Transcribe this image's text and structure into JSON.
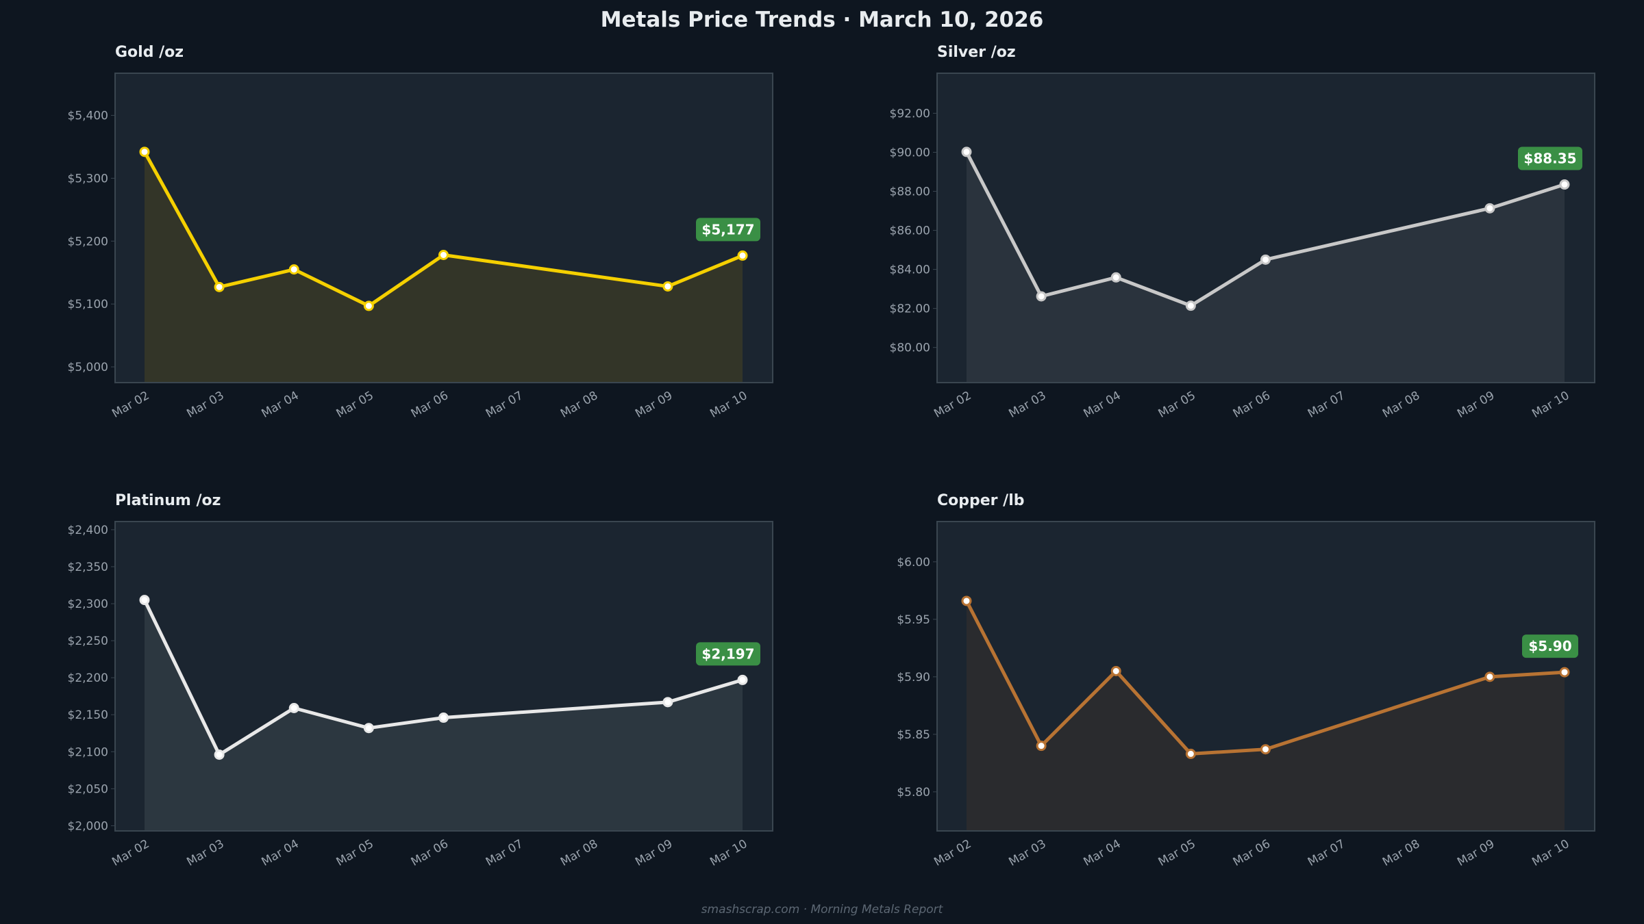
{
  "title": "Metals Price Trends  ·  March 10, 2026",
  "footer": "smashscrap.com  ·  Morning Metals Report",
  "colors": {
    "background": "#0e1620",
    "axes_bg": "#1b2530",
    "border": "#3a4650",
    "badge": "#3a8f45"
  },
  "chart_data": [
    {
      "type": "area",
      "title": "Gold  /oz",
      "categories": [
        "Mar 02",
        "Mar 03",
        "Mar 04",
        "Mar 05",
        "Mar 06",
        "Mar 07",
        "Mar 08",
        "Mar 09",
        "Mar 10"
      ],
      "values": [
        5342,
        5127,
        5155,
        5097,
        5178,
        null,
        null,
        5128,
        5177
      ],
      "ylim": [
        4975,
        5467
      ],
      "yticks": [
        5000,
        5100,
        5200,
        5300,
        5400
      ],
      "ytick_labels": [
        "$5,000",
        "$5,100",
        "$5,200",
        "$5,300",
        "$5,400"
      ],
      "badge": "$5,177",
      "line_color": "#f5d000",
      "fill_color": "#333528",
      "marker_fill": "#ffffff",
      "grid": false
    },
    {
      "type": "area",
      "title": "Silver  /oz",
      "categories": [
        "Mar 02",
        "Mar 03",
        "Mar 04",
        "Mar 05",
        "Mar 06",
        "Mar 07",
        "Mar 08",
        "Mar 09",
        "Mar 10"
      ],
      "values": [
        90.02,
        82.62,
        83.59,
        82.14,
        84.5,
        null,
        null,
        87.13,
        88.35
      ],
      "ylim": [
        78.2,
        94.05
      ],
      "yticks": [
        80,
        82,
        84,
        86,
        88,
        90,
        92
      ],
      "ytick_labels": [
        "$80.00",
        "$82.00",
        "$84.00",
        "$86.00",
        "$88.00",
        "$90.00",
        "$92.00"
      ],
      "badge": "$88.35",
      "line_color": "#c8c8c8",
      "fill_color": "#2a333d",
      "marker_fill": "#ffffff",
      "grid": false
    },
    {
      "type": "area",
      "title": "Platinum  /oz",
      "categories": [
        "Mar 02",
        "Mar 03",
        "Mar 04",
        "Mar 05",
        "Mar 06",
        "Mar 07",
        "Mar 08",
        "Mar 09",
        "Mar 10"
      ],
      "values": [
        2305,
        2096,
        2159,
        2132,
        2146,
        null,
        null,
        2167,
        2197
      ],
      "ylim": [
        1993,
        2411
      ],
      "yticks": [
        2000,
        2050,
        2100,
        2150,
        2200,
        2250,
        2300,
        2350,
        2400
      ],
      "ytick_labels": [
        "$2,000",
        "$2,050",
        "$2,100",
        "$2,150",
        "$2,200",
        "$2,250",
        "$2,300",
        "$2,350",
        "$2,400"
      ],
      "badge": "$2,197",
      "line_color": "#e8e8e8",
      "fill_color": "#2c3740",
      "marker_fill": "#ffffff",
      "grid": false
    },
    {
      "type": "area",
      "title": "Copper  /lb",
      "categories": [
        "Mar 02",
        "Mar 03",
        "Mar 04",
        "Mar 05",
        "Mar 06",
        "Mar 07",
        "Mar 08",
        "Mar 09",
        "Mar 10"
      ],
      "values": [
        5.966,
        5.84,
        5.905,
        5.833,
        5.837,
        null,
        null,
        5.9,
        5.904
      ],
      "ylim": [
        5.766,
        6.035
      ],
      "yticks": [
        5.8,
        5.85,
        5.9,
        5.95,
        6.0
      ],
      "ytick_labels": [
        "$5.80",
        "$5.85",
        "$5.90",
        "$5.95",
        "$6.00"
      ],
      "badge": "$5.90",
      "line_color": "#b87333",
      "fill_color": "#2a2b2e",
      "marker_fill": "#ffffff",
      "grid": false
    }
  ]
}
